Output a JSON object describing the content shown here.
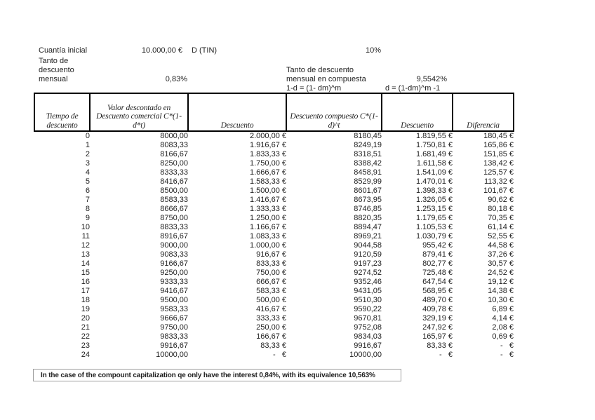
{
  "header_info": {
    "cuantia_label": "Cuantía inicial",
    "cuantia_value": "10.000,00 €",
    "tin_label": "D (TIN)",
    "tin_value": "10%",
    "tanto_mensual_label": "Tanto de\ndescuento\nmensual",
    "tanto_mensual_value": "0,83%",
    "tanto_compuesta_label": "Tanto de descuento\nmensual  en compuesta",
    "tanto_compuesta_value": "9,5542%",
    "formula_1": "1-d = (1- dm)^m",
    "formula_2": "d = (1-dm)^m -1"
  },
  "table": {
    "headers": [
      "Tiempo de\ndescuento",
      "Valor descontado en\nDescuento comercial C*(1-\nd*t)",
      "Descuento",
      "Descuento compuesto C*(1-\nd)^t",
      "Descuento",
      "Diferencia"
    ],
    "rows": [
      [
        "0",
        "8000,00",
        "2.000,00 €",
        "8180,45",
        "1.819,55 €",
        "180,45 €"
      ],
      [
        "1",
        "8083,33",
        "1.916,67 €",
        "8249,19",
        "1.750,81 €",
        "165,86 €"
      ],
      [
        "2",
        "8166,67",
        "1.833,33 €",
        "8318,51",
        "1.681,49 €",
        "151,85 €"
      ],
      [
        "3",
        "8250,00",
        "1.750,00 €",
        "8388,42",
        "1.611,58 €",
        "138,42 €"
      ],
      [
        "4",
        "8333,33",
        "1.666,67 €",
        "8458,91",
        "1.541,09 €",
        "125,57 €"
      ],
      [
        "5",
        "8416,67",
        "1.583,33 €",
        "8529,99",
        "1.470,01 €",
        "113,32 €"
      ],
      [
        "6",
        "8500,00",
        "1.500,00 €",
        "8601,67",
        "1.398,33 €",
        "101,67 €"
      ],
      [
        "7",
        "8583,33",
        "1.416,67 €",
        "8673,95",
        "1.326,05 €",
        "90,62 €"
      ],
      [
        "8",
        "8666,67",
        "1.333,33 €",
        "8746,85",
        "1.253,15 €",
        "80,18 €"
      ],
      [
        "9",
        "8750,00",
        "1.250,00 €",
        "8820,35",
        "1.179,65 €",
        "70,35 €"
      ],
      [
        "10",
        "8833,33",
        "1.166,67 €",
        "8894,47",
        "1.105,53 €",
        "61,14 €"
      ],
      [
        "11",
        "8916,67",
        "1.083,33 €",
        "8969,21",
        "1.030,79 €",
        "52,55 €"
      ],
      [
        "12",
        "9000,00",
        "1.000,00 €",
        "9044,58",
        "955,42 €",
        "44,58 €"
      ],
      [
        "13",
        "9083,33",
        "916,67 €",
        "9120,59",
        "879,41 €",
        "37,26 €"
      ],
      [
        "14",
        "9166,67",
        "833,33 €",
        "9197,23",
        "802,77 €",
        "30,57 €"
      ],
      [
        "15",
        "9250,00",
        "750,00 €",
        "9274,52",
        "725,48 €",
        "24,52 €"
      ],
      [
        "16",
        "9333,33",
        "666,67 €",
        "9352,46",
        "647,54 €",
        "19,12 €"
      ],
      [
        "17",
        "9416,67",
        "583,33 €",
        "9431,05",
        "568,95 €",
        "14,38 €"
      ],
      [
        "18",
        "9500,00",
        "500,00 €",
        "9510,30",
        "489,70 €",
        "10,30 €"
      ],
      [
        "19",
        "9583,33",
        "416,67 €",
        "9590,22",
        "409,78 €",
        "6,89 €"
      ],
      [
        "20",
        "9666,67",
        "333,33 €",
        "9670,81",
        "329,19 €",
        "4,14 €"
      ],
      [
        "21",
        "9750,00",
        "250,00 €",
        "9752,08",
        "247,92 €",
        "2,08 €"
      ],
      [
        "22",
        "9833,33",
        "166,67 €",
        "9834,03",
        "165,97 €",
        "0,69 €"
      ],
      [
        "23",
        "9916,67",
        "83,33 €",
        "9916,67",
        "83,33 €",
        "-   €"
      ],
      [
        "24",
        "10000,00",
        "-   €",
        "10000,00",
        "-   €",
        "-   €"
      ]
    ]
  },
  "note": "In the case of the compount capitalization qe only have the interest 0,84%, with its equivalence 10,563%",
  "colors": {
    "table_border": "#000000",
    "note_border": "#9e9e9e",
    "text": "#1f1f1f",
    "background": "#ffffff"
  }
}
